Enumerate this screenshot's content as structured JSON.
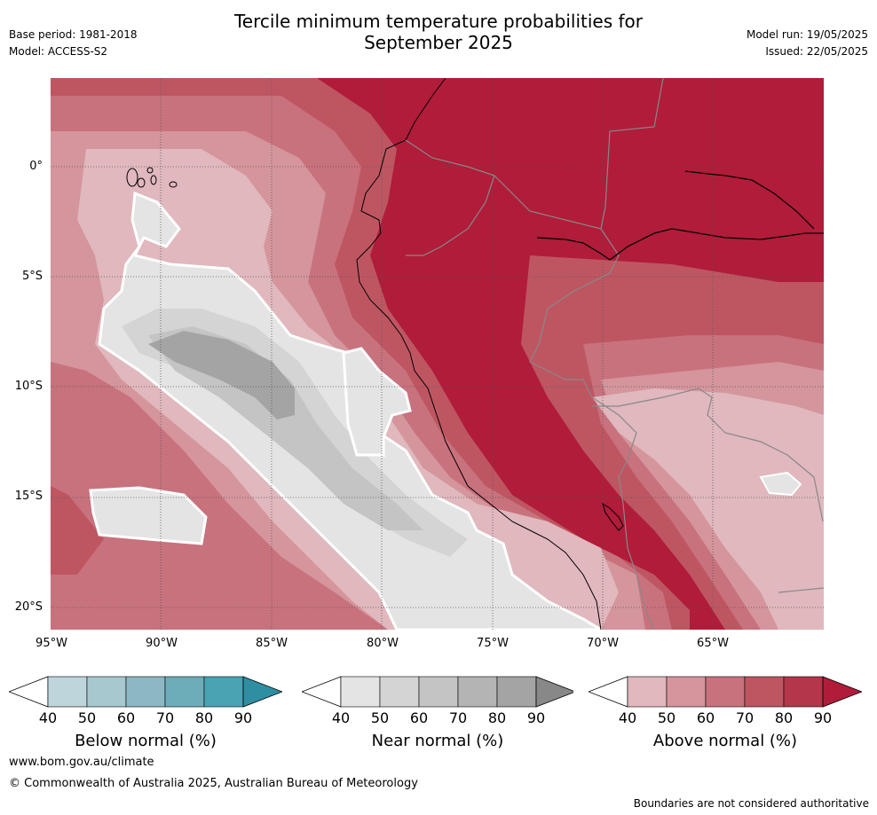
{
  "header": {
    "title_line1": "Tercile minimum temperature probabilities for",
    "title_line2": "September 2025",
    "base_period": "Base period: 1981-2018",
    "model": "Model: ACCESS-S2",
    "model_run": "Model run: 19/05/2025",
    "issued": "Issued: 22/05/2025"
  },
  "map": {
    "latitude_labels": [
      "0°",
      "5°S",
      "10°S",
      "15°S",
      "20°S"
    ],
    "longitude_labels": [
      "95°W",
      "90°W",
      "85°W",
      "80°W",
      "75°W",
      "70°W",
      "65°W"
    ],
    "lat_range": [
      -21,
      4
    ],
    "lon_range": [
      -95,
      -60
    ]
  },
  "colorbars": [
    {
      "label": "Below normal (%)",
      "ticks": [
        "40",
        "50",
        "60",
        "70",
        "80",
        "90"
      ],
      "colors": [
        "#ffffff",
        "#bdd5db",
        "#a8c8cf",
        "#8cb8c3",
        "#6cadb9",
        "#49a3b3",
        "#2e8ea2"
      ]
    },
    {
      "label": "Near normal (%)",
      "ticks": [
        "40",
        "50",
        "60",
        "70",
        "80",
        "90"
      ],
      "colors": [
        "#ffffff",
        "#e4e4e4",
        "#d4d4d4",
        "#c4c4c4",
        "#b4b4b4",
        "#a4a4a4",
        "#888888"
      ]
    },
    {
      "label": "Above normal (%)",
      "ticks": [
        "40",
        "50",
        "60",
        "70",
        "80",
        "90"
      ],
      "colors": [
        "#ffffff",
        "#e0b8bd",
        "#d5959d",
        "#c8727e",
        "#be5662",
        "#b3364a",
        "#b01c3a"
      ]
    }
  ],
  "footer": {
    "website": "www.bom.gov.au/climate",
    "copyright": "© Commonwealth of Australia 2025, Australian Bureau of Meteorology",
    "disclaimer": "Boundaries are not considered authoritative"
  }
}
